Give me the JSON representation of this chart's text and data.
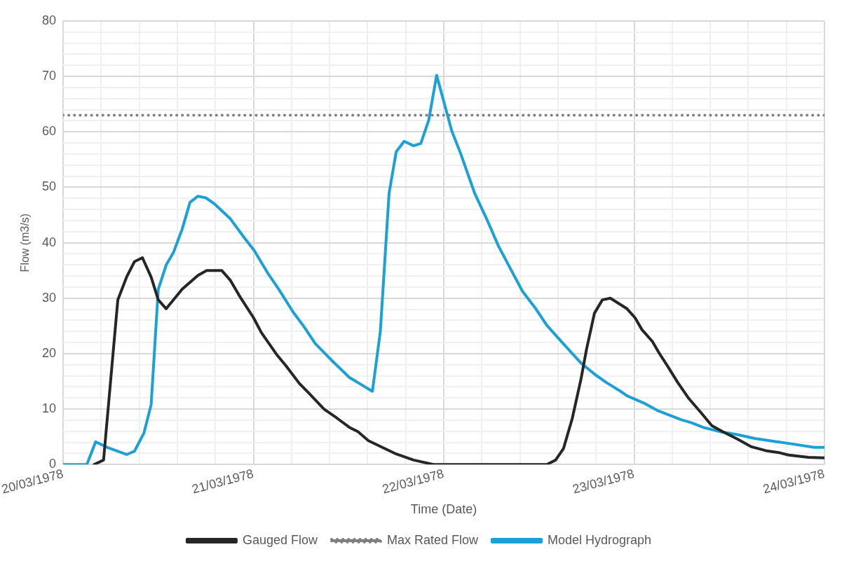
{
  "chart_data": {
    "type": "line",
    "xlabel": "Time (Date)",
    "ylabel": "Flow (m3/s)",
    "xlim": [
      "1978-03-20",
      "1978-03-24"
    ],
    "xticks": [
      {
        "value": "1978-03-20",
        "label": "20/03/1978"
      },
      {
        "value": "1978-03-20T04:48",
        "label": null
      },
      {
        "value": "1978-03-20T09:36",
        "label": null
      },
      {
        "value": "1978-03-20T14:24",
        "label": null
      },
      {
        "value": "1978-03-20T19:12",
        "label": null
      },
      {
        "value": "1978-03-21",
        "label": "21/03/1978"
      },
      {
        "value": "1978-03-21T04:48",
        "label": null
      },
      {
        "value": "1978-03-21T09:36",
        "label": null
      },
      {
        "value": "1978-03-21T14:24",
        "label": null
      },
      {
        "value": "1978-03-21T19:12",
        "label": null
      },
      {
        "value": "1978-03-22",
        "label": "22/03/1978"
      },
      {
        "value": "1978-03-22T04:48",
        "label": null
      },
      {
        "value": "1978-03-22T09:36",
        "label": null
      },
      {
        "value": "1978-03-22T14:24",
        "label": null
      },
      {
        "value": "1978-03-22T19:12",
        "label": null
      },
      {
        "value": "1978-03-23",
        "label": "23/03/1978"
      },
      {
        "value": "1978-03-23T04:48",
        "label": null
      },
      {
        "value": "1978-03-23T09:36",
        "label": null
      },
      {
        "value": "1978-03-23T14:24",
        "label": null
      },
      {
        "value": "1978-03-23T19:12",
        "label": null
      },
      {
        "value": "1978-03-24",
        "label": "24/03/1978"
      }
    ],
    "ylim": [
      0,
      80
    ],
    "yticks": [
      0,
      {
        "value": 2,
        "label": null
      },
      {
        "value": 4,
        "label": null
      },
      {
        "value": 6,
        "label": null
      },
      {
        "value": 8,
        "label": null
      },
      10,
      {
        "value": 12,
        "label": null
      },
      {
        "value": 14,
        "label": null
      },
      {
        "value": 16,
        "label": null
      },
      {
        "value": 18,
        "label": null
      },
      20,
      {
        "value": 22,
        "label": null
      },
      {
        "value": 24,
        "label": null
      },
      {
        "value": 26,
        "label": null
      },
      {
        "value": 28,
        "label": null
      },
      30,
      {
        "value": 32,
        "label": null
      },
      {
        "value": 34,
        "label": null
      },
      {
        "value": 36,
        "label": null
      },
      {
        "value": 38,
        "label": null
      },
      40,
      {
        "value": 42,
        "label": null
      },
      {
        "value": 44,
        "label": null
      },
      {
        "value": 46,
        "label": null
      },
      {
        "value": 48,
        "label": null
      },
      50,
      {
        "value": 52,
        "label": null
      },
      {
        "value": 54,
        "label": null
      },
      {
        "value": 56,
        "label": null
      },
      {
        "value": 58,
        "label": null
      },
      60,
      {
        "value": 62,
        "label": null
      },
      {
        "value": 64,
        "label": null
      },
      {
        "value": 66,
        "label": null
      },
      {
        "value": 68,
        "label": null
      },
      70,
      {
        "value": 72,
        "label": null
      },
      {
        "value": 74,
        "label": null
      },
      {
        "value": 76,
        "label": null
      },
      {
        "value": 78,
        "label": null
      },
      80
    ],
    "grid": true,
    "legend": "bottom",
    "marker": "none",
    "line_style": "solid",
    "series": [
      {
        "name": "Gauged Flow",
        "color": "#262626",
        "x": [
          "1978-03-20T03:54",
          "1978-03-20T05:06",
          "1978-03-20T06:54",
          "1978-03-20T08:00",
          "1978-03-20T09:00",
          "1978-03-20T10:00",
          "1978-03-20T11:06",
          "1978-03-20T12:00",
          "1978-03-20T13:00",
          "1978-03-20T15:00",
          "1978-03-20T17:00",
          "1978-03-20T18:06",
          "1978-03-20T20:00",
          "1978-03-20T21:06",
          "1978-03-20T22:12",
          "1978-03-21T00:00",
          "1978-03-21T01:00",
          "1978-03-21T03:00",
          "1978-03-21T04:06",
          "1978-03-21T05:48",
          "1978-03-21T07:06",
          "1978-03-21T08:54",
          "1978-03-21T10:30",
          "1978-03-21T12:06",
          "1978-03-21T13:12",
          "1978-03-21T14:30",
          "1978-03-21T18:00",
          "1978-03-21T20:12",
          "1978-03-21T22:42",
          "1978-03-22T13:00",
          "1978-03-22T14:06",
          "1978-03-22T15:06",
          "1978-03-22T16:12",
          "1978-03-22T17:18",
          "1978-03-22T18:00",
          "1978-03-22T19:00",
          "1978-03-22T20:00",
          "1978-03-22T21:00",
          "1978-03-22T23:06",
          "1978-03-23T00:06",
          "1978-03-23T01:00",
          "1978-03-23T02:18",
          "1978-03-23T03:12",
          "1978-03-23T04:12",
          "1978-03-23T05:30",
          "1978-03-23T06:54",
          "1978-03-23T08:24",
          "1978-03-23T09:48",
          "1978-03-23T11:12",
          "1978-03-23T13:00",
          "1978-03-23T14:48",
          "1978-03-23T16:36",
          "1978-03-23T18:24",
          "1978-03-23T19:30",
          "1978-03-23T22:00",
          "1978-03-24T00:00"
        ],
        "values": [
          0,
          0.8,
          29.7,
          33.8,
          36.6,
          37.3,
          33.8,
          29.7,
          28.1,
          31.6,
          34.1,
          35,
          35,
          33.2,
          30.5,
          26.5,
          23.8,
          19.7,
          17.8,
          14.6,
          12.7,
          10,
          8.4,
          6.7,
          5.9,
          4.3,
          1.9,
          0.8,
          0,
          0,
          0.8,
          2.9,
          8.3,
          15.4,
          20.8,
          27.3,
          29.7,
          30.0,
          28.1,
          26.5,
          24.3,
          22.2,
          20.0,
          17.8,
          14.8,
          11.9,
          9.4,
          7.0,
          5.9,
          4.6,
          3.2,
          2.5,
          2.1,
          1.7,
          1.3,
          1.2
        ]
      },
      {
        "name": "Model Hydrograph",
        "color": "#1ba1d6",
        "x": [
          "1978-03-20T00:00",
          "1978-03-20T03:00",
          "1978-03-20T04:06",
          "1978-03-20T05:42",
          "1978-03-20T08:00",
          "1978-03-20T09:00",
          "1978-03-20T10:12",
          "1978-03-20T11:06",
          "1978-03-20T12:00",
          "1978-03-20T13:00",
          "1978-03-20T13:54",
          "1978-03-20T15:00",
          "1978-03-20T16:00",
          "1978-03-20T17:00",
          "1978-03-20T18:00",
          "1978-03-20T19:06",
          "1978-03-20T21:06",
          "1978-03-20T22:54",
          "1978-03-21T00:06",
          "1978-03-21T01:54",
          "1978-03-21T03:12",
          "1978-03-21T05:00",
          "1978-03-21T06:24",
          "1978-03-21T07:48",
          "1978-03-21T10:00",
          "1978-03-21T12:06",
          "1978-03-21T15:00",
          "1978-03-21T16:00",
          "1978-03-21T17:06",
          "1978-03-21T18:00",
          "1978-03-21T19:00",
          "1978-03-21T20:12",
          "1978-03-21T21:06",
          "1978-03-21T22:06",
          "1978-03-21T23:06",
          "1978-03-22T01:00",
          "1978-03-22T02:06",
          "1978-03-22T03:54",
          "1978-03-22T05:30",
          "1978-03-22T06:54",
          "1978-03-22T08:18",
          "1978-03-22T09:54",
          "1978-03-22T11:36",
          "1978-03-22T13:00",
          "1978-03-22T15:00",
          "1978-03-22T17:18",
          "1978-03-22T19:06",
          "1978-03-22T20:30",
          "1978-03-22T22:18",
          "1978-03-22T23:06",
          "1978-03-23T01:12",
          "1978-03-23T03:00",
          "1978-03-23T05:54",
          "1978-03-23T07:18",
          "1978-03-23T08:42",
          "1978-03-23T10:54",
          "1978-03-23T13:00",
          "1978-03-23T15:12",
          "1978-03-23T18:00",
          "1978-03-23T19:30",
          "1978-03-23T22:42",
          "1978-03-24T00:00"
        ],
        "values": [
          0,
          0,
          4.1,
          3.0,
          1.8,
          2.4,
          5.7,
          10.8,
          31.6,
          36.0,
          38.2,
          42.4,
          47.3,
          48.4,
          48.1,
          47.0,
          44.3,
          40.8,
          38.6,
          34.3,
          31.6,
          27.5,
          24.8,
          21.8,
          18.6,
          15.7,
          13.2,
          24.0,
          48.9,
          56.4,
          58.3,
          57.5,
          57.9,
          62.1,
          70.2,
          60.2,
          56.2,
          48.9,
          44.0,
          39.4,
          35.6,
          31.3,
          28.1,
          25.1,
          21.9,
          18.3,
          16.2,
          14.8,
          13.2,
          12.4,
          11.1,
          9.7,
          8.1,
          7.5,
          6.7,
          5.9,
          5.4,
          4.7,
          4.1,
          3.8,
          3.1,
          3.1
        ]
      }
    ],
    "ref_lines": [
      {
        "axis": "y",
        "value": 63,
        "label": "Max Rated Flow",
        "color": "#7f7f7f",
        "line_style": "dotted"
      }
    ]
  }
}
